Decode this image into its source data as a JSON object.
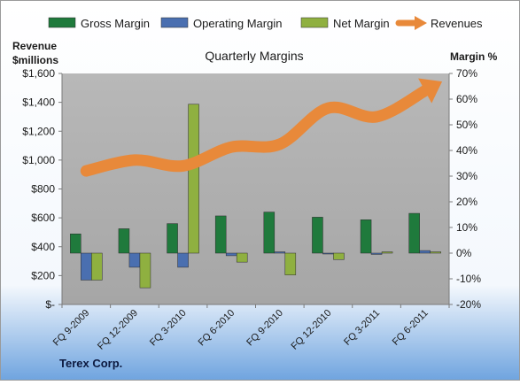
{
  "chart_data": {
    "type": "bar",
    "title": "Quarterly Margins",
    "company": "Terex Corp.",
    "left_axis_label_line1": "Revenue",
    "left_axis_label_line2": "$millions",
    "right_axis_label": "Margin %",
    "categories": [
      "FQ 9-2009",
      "FQ 12-2009",
      "FQ 3-2010",
      "FQ 6-2010",
      "FQ 9-2010",
      "FQ 12-2010",
      "FQ 3-2011",
      "FQ 6-2011"
    ],
    "revenue_axis": {
      "min": 0,
      "max": 1600,
      "step": 200,
      "tick_labels": [
        "$-",
        "$200",
        "$400",
        "$600",
        "$800",
        "$1,000",
        "$1,200",
        "$1,400",
        "$1,600"
      ]
    },
    "margin_axis": {
      "min": -20,
      "max": 70,
      "step": 10,
      "tick_labels": [
        "-20%",
        "-10%",
        "0%",
        "10%",
        "20%",
        "30%",
        "40%",
        "50%",
        "60%",
        "70%"
      ]
    },
    "series": [
      {
        "name": "Gross Margin",
        "kind": "bar",
        "axis": "right",
        "color": "#1f7a3c",
        "values": [
          7.5,
          9.5,
          11.5,
          14.5,
          16,
          14,
          13,
          15.5
        ]
      },
      {
        "name": "Operating Margin",
        "kind": "bar",
        "axis": "right",
        "color": "#4a6fb0",
        "values": [
          -10.5,
          -5.5,
          -5.5,
          -1,
          0.5,
          0,
          -0.5,
          1
        ]
      },
      {
        "name": "Net Margin",
        "kind": "bar",
        "axis": "right",
        "color": "#8fb040",
        "values": [
          -10.5,
          -13.5,
          58,
          -3.5,
          -8.5,
          -2.5,
          0.5,
          0.5
        ]
      },
      {
        "name": "Revenues",
        "kind": "line",
        "axis": "left",
        "color": "#e8893a",
        "values": [
          925,
          1000,
          960,
          1090,
          1110,
          1360,
          1300,
          1480
        ]
      }
    ],
    "legend_position": "top",
    "grid": false
  }
}
